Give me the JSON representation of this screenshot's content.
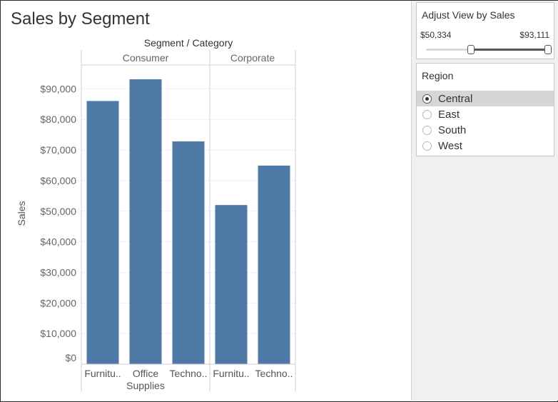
{
  "dashboard": {
    "title": "Sales by Segment"
  },
  "chart_data": {
    "type": "bar",
    "header_title": "Segment  /  Category",
    "ylabel": "Sales",
    "ylim": [
      0,
      100000
    ],
    "yticks": [
      0,
      10000,
      20000,
      30000,
      40000,
      50000,
      60000,
      70000,
      80000,
      90000
    ],
    "ytick_labels": [
      "$0",
      "$10,000",
      "$20,000",
      "$30,000",
      "$40,000",
      "$50,000",
      "$60,000",
      "$70,000",
      "$80,000",
      "$90,000"
    ],
    "grid": true,
    "bar_color": "#4e79a7",
    "segments": [
      {
        "name": "Consumer",
        "categories": [
          {
            "label_lines": [
              "Furnitu.."
            ],
            "value": 86000
          },
          {
            "label_lines": [
              "Office",
              "Supplies"
            ],
            "value": 93100
          },
          {
            "label_lines": [
              "Techno.."
            ],
            "value": 72800
          }
        ]
      },
      {
        "name": "Corporate",
        "categories": [
          {
            "label_lines": [
              "Furnitu.."
            ],
            "value": 52000
          },
          {
            "label_lines": [
              "Techno.."
            ],
            "value": 64900
          }
        ]
      }
    ]
  },
  "filters": {
    "sales_slider": {
      "title": "Adjust View by Sales",
      "min_label": "$50,334",
      "max_label": "$93,111",
      "low_fraction": 0.37,
      "high_fraction": 1.0
    },
    "region": {
      "title": "Region",
      "options": [
        "Central",
        "East",
        "South",
        "West"
      ],
      "selected": "Central"
    }
  }
}
